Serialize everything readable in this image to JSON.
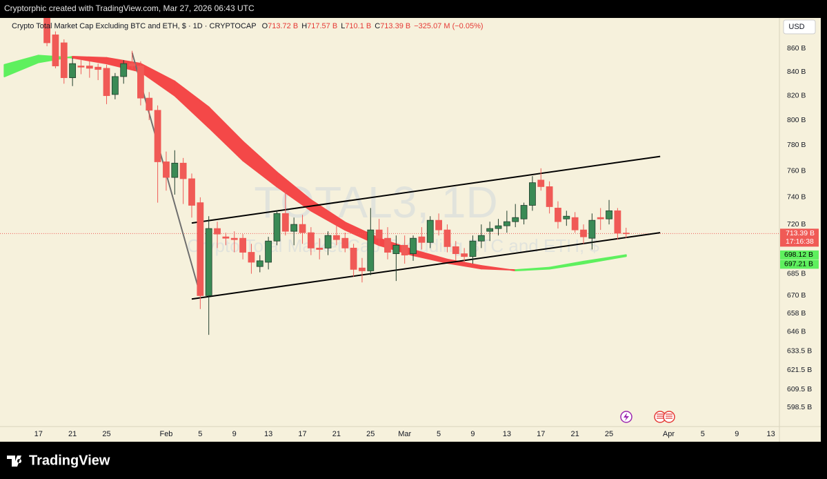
{
  "header": {
    "text": "Cryptorphic created with TradingView.com, Mar 27, 2026 06:43 UTC"
  },
  "chart_data": {
    "type": "candlestick",
    "symbol": "Crypto Total Market Cap Excluding BTC and ETH, $ · 1D · CRYPTOCAP",
    "ohlc_legend": [
      {
        "key": "O",
        "value": "713.72 B"
      },
      {
        "key": "H",
        "value": "717.57 B"
      },
      {
        "key": "L",
        "value": "710.1 B"
      },
      {
        "key": "C",
        "value": "713.39 B"
      }
    ],
    "change": "−325.07 M (−0.05%)",
    "watermark": "TOTAL3, 1D",
    "watermark_subtitle": "Crypto Total Market Cap Excluding BTC and ETH, $",
    "currency": "USD",
    "up_color": "#3a8a55",
    "down_color": "#f05a56",
    "x": [
      "01-18",
      "01-19",
      "01-20",
      "01-21",
      "01-22",
      "01-23",
      "01-24",
      "01-25",
      "01-26",
      "01-27",
      "01-28",
      "01-29",
      "01-30",
      "01-31",
      "02-01",
      "02-02",
      "02-03",
      "02-04",
      "02-05",
      "02-06",
      "02-07",
      "02-08",
      "02-09",
      "02-10",
      "02-11",
      "02-12",
      "02-13",
      "02-14",
      "02-15",
      "02-16",
      "02-17",
      "02-18",
      "02-19",
      "02-20",
      "02-21",
      "02-22",
      "02-23",
      "02-24",
      "02-25",
      "02-26",
      "02-27",
      "02-28",
      "03-01",
      "03-02",
      "03-03",
      "03-04",
      "03-05",
      "03-06",
      "03-07",
      "03-08",
      "03-09",
      "03-10",
      "03-11",
      "03-12",
      "03-13",
      "03-14",
      "03-15",
      "03-16",
      "03-17",
      "03-18",
      "03-19",
      "03-20",
      "03-21",
      "03-22",
      "03-23",
      "03-24",
      "03-25",
      "03-26",
      "03-27"
    ],
    "open": [
      887,
      872,
      865,
      835,
      845,
      845,
      844,
      843,
      821,
      836,
      847,
      845,
      818,
      808,
      767,
      755,
      766,
      754,
      736,
      670,
      717,
      711,
      710,
      710,
      700,
      690,
      693,
      708,
      728,
      715,
      720,
      714,
      703,
      703,
      712,
      710,
      703,
      689,
      687,
      716,
      710,
      699,
      705,
      699,
      711,
      707,
      723,
      716,
      704,
      699,
      697,
      708,
      715,
      717,
      719,
      722,
      724,
      734,
      753,
      748,
      732,
      724,
      725,
      716,
      710,
      725,
      724,
      730,
      713.72
    ],
    "high": [
      890,
      875,
      868,
      852,
      850,
      849,
      847,
      846,
      839,
      850,
      858,
      849,
      823,
      812,
      775,
      776,
      770,
      758,
      740,
      726,
      722,
      714,
      715,
      713,
      706,
      698,
      711,
      730,
      745,
      725,
      727,
      718,
      710,
      715,
      720,
      714,
      706,
      696,
      732,
      724,
      718,
      712,
      712,
      712,
      718,
      726,
      728,
      720,
      708,
      703,
      712,
      720,
      722,
      724,
      730,
      735,
      736,
      756,
      762,
      752,
      737,
      730,
      729,
      720,
      728,
      732,
      738,
      732,
      717.57
    ],
    "low": [
      862,
      843,
      830,
      828,
      838,
      835,
      833,
      813,
      817,
      830,
      842,
      812,
      800,
      736,
      745,
      742,
      735,
      725,
      661,
      644,
      703,
      705,
      700,
      695,
      685,
      686,
      688,
      705,
      712,
      705,
      706,
      698,
      695,
      698,
      705,
      700,
      683,
      679,
      684,
      705,
      695,
      680,
      692,
      694,
      702,
      703,
      712,
      700,
      694,
      693,
      692,
      703,
      708,
      712,
      714,
      718,
      720,
      730,
      745,
      728,
      717,
      719,
      714,
      706,
      702,
      716,
      720,
      709,
      710.1
    ],
    "close": [
      865,
      845,
      835,
      847,
      844,
      843,
      842,
      820,
      836,
      847,
      845,
      818,
      808,
      767,
      755,
      766,
      754,
      734,
      670,
      717,
      713,
      710,
      709,
      700,
      693,
      694,
      708,
      728,
      715,
      720,
      714,
      703,
      702,
      712,
      709,
      703,
      688,
      687,
      716,
      710,
      700,
      705,
      698,
      710,
      707,
      723,
      716,
      704,
      699,
      697,
      708,
      712,
      717,
      719,
      722,
      725,
      734,
      751,
      748,
      733,
      722,
      726,
      716,
      711,
      723,
      724,
      730,
      713.7,
      713.39
    ],
    "last_price_label": "713.39 B",
    "countdown": "17:16:38",
    "ribbon": {
      "x": [
        "01-13",
        "01-17",
        "01-21",
        "01-25",
        "01-29",
        "02-02",
        "02-06",
        "02-10",
        "02-14",
        "02-18",
        "02-22",
        "02-26",
        "03-02",
        "03-06",
        "03-10",
        "03-14",
        "03-18",
        "03-22",
        "03-27"
      ],
      "fast": [
        846,
        854,
        852,
        847,
        840,
        820,
        794,
        768,
        748,
        730,
        716,
        705,
        697.8,
        692.5,
        688.5,
        687.6,
        689.3,
        693.5,
        698.12
      ],
      "slow": [
        836,
        848,
        853,
        852,
        847,
        832,
        810.6,
        783,
        759,
        738,
        721.5,
        710,
        701.7,
        695,
        690.5,
        687.2,
        688.4,
        692,
        697.21
      ],
      "fast_label": "698.12 B",
      "slow_label": "697.21 B",
      "up_color": "#5ef05e",
      "down_color": "#f44848"
    },
    "trendlines": [
      {
        "x": [
          "02-04",
          "03-31"
        ],
        "values": [
          721,
          771.2
        ],
        "color": "#000000"
      },
      {
        "x": [
          "02-04",
          "03-31"
        ],
        "values": [
          667.7,
          714
        ],
        "color": "#000000"
      },
      {
        "x": [
          "01-28",
          "02-05"
        ],
        "values": [
          856.4,
          670.5
        ],
        "color": "#6e6e6e"
      }
    ],
    "log": true,
    "ylim": [
      587,
      887
    ],
    "yticks": [
      {
        "value": 860,
        "label": "860 B"
      },
      {
        "value": 840,
        "label": "840 B"
      },
      {
        "value": 820,
        "label": "820 B"
      },
      {
        "value": 800,
        "label": "800 B"
      },
      {
        "value": 780,
        "label": "780 B"
      },
      {
        "value": 760,
        "label": "760 B"
      },
      {
        "value": 740,
        "label": "740 B"
      },
      {
        "value": 720,
        "label": "720 B"
      },
      {
        "value": 685,
        "label": "685 B"
      },
      {
        "value": 670,
        "label": "670 B"
      },
      {
        "value": 658,
        "label": "658 B"
      },
      {
        "value": 646,
        "label": "646 B"
      },
      {
        "value": 633.5,
        "label": "633.5 B"
      },
      {
        "value": 621.5,
        "label": "621.5 B"
      },
      {
        "value": 609.5,
        "label": "609.5 B"
      },
      {
        "value": 598.5,
        "label": "598.5 B"
      }
    ],
    "xlim": [
      "01-12",
      "04-14"
    ],
    "xticks": [
      {
        "value": "01-17",
        "label": "17"
      },
      {
        "value": "01-21",
        "label": "21"
      },
      {
        "value": "01-25",
        "label": "25"
      },
      {
        "value": "02-01",
        "label": "Feb"
      },
      {
        "value": "02-05",
        "label": "5"
      },
      {
        "value": "02-09",
        "label": "9"
      },
      {
        "value": "02-13",
        "label": "13"
      },
      {
        "value": "02-17",
        "label": "17"
      },
      {
        "value": "02-21",
        "label": "21"
      },
      {
        "value": "02-25",
        "label": "25"
      },
      {
        "value": "03-01",
        "label": "Mar"
      },
      {
        "value": "03-05",
        "label": "5"
      },
      {
        "value": "03-09",
        "label": "9"
      },
      {
        "value": "03-13",
        "label": "13"
      },
      {
        "value": "03-17",
        "label": "17"
      },
      {
        "value": "03-21",
        "label": "21"
      },
      {
        "value": "03-25",
        "label": "25"
      },
      {
        "value": "04-01",
        "label": "Apr"
      },
      {
        "value": "04-05",
        "label": "5"
      },
      {
        "value": "04-09",
        "label": "9"
      },
      {
        "value": "04-13",
        "label": "13"
      }
    ]
  },
  "footer": {
    "logo": "TradingView"
  }
}
